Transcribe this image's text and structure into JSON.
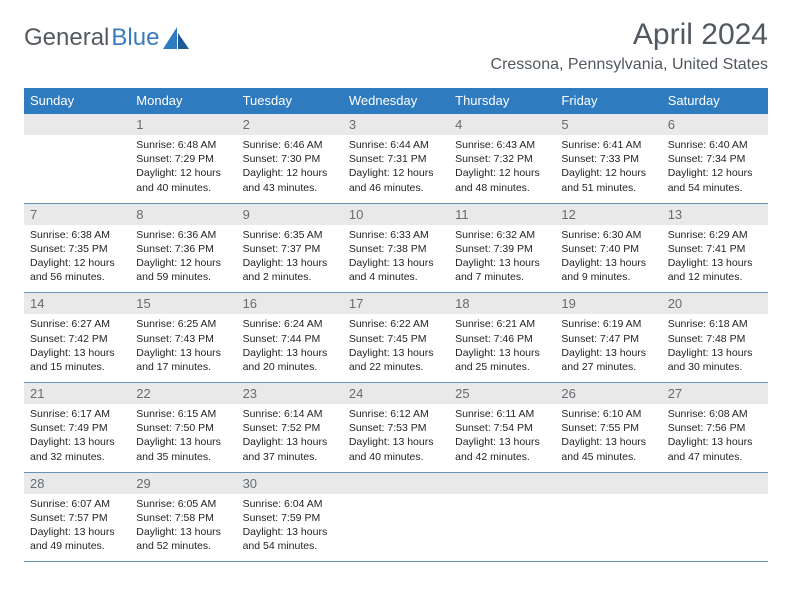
{
  "brand": {
    "part1": "General",
    "part2": "Blue"
  },
  "title": "April 2024",
  "location": "Cressona, Pennsylvania, United States",
  "colors": {
    "header_bg": "#2f7bbf",
    "header_text": "#ffffff",
    "daynum_bg": "#e9e9e9",
    "daynum_text": "#666c72",
    "text": "#222426",
    "row_border": "#6b93b8",
    "title_text": "#51585f"
  },
  "weekdays": [
    "Sunday",
    "Monday",
    "Tuesday",
    "Wednesday",
    "Thursday",
    "Friday",
    "Saturday"
  ],
  "weeks": [
    [
      {
        "num": "",
        "lines": []
      },
      {
        "num": "1",
        "lines": [
          "Sunrise: 6:48 AM",
          "Sunset: 7:29 PM",
          "Daylight: 12 hours",
          "and 40 minutes."
        ]
      },
      {
        "num": "2",
        "lines": [
          "Sunrise: 6:46 AM",
          "Sunset: 7:30 PM",
          "Daylight: 12 hours",
          "and 43 minutes."
        ]
      },
      {
        "num": "3",
        "lines": [
          "Sunrise: 6:44 AM",
          "Sunset: 7:31 PM",
          "Daylight: 12 hours",
          "and 46 minutes."
        ]
      },
      {
        "num": "4",
        "lines": [
          "Sunrise: 6:43 AM",
          "Sunset: 7:32 PM",
          "Daylight: 12 hours",
          "and 48 minutes."
        ]
      },
      {
        "num": "5",
        "lines": [
          "Sunrise: 6:41 AM",
          "Sunset: 7:33 PM",
          "Daylight: 12 hours",
          "and 51 minutes."
        ]
      },
      {
        "num": "6",
        "lines": [
          "Sunrise: 6:40 AM",
          "Sunset: 7:34 PM",
          "Daylight: 12 hours",
          "and 54 minutes."
        ]
      }
    ],
    [
      {
        "num": "7",
        "lines": [
          "Sunrise: 6:38 AM",
          "Sunset: 7:35 PM",
          "Daylight: 12 hours",
          "and 56 minutes."
        ]
      },
      {
        "num": "8",
        "lines": [
          "Sunrise: 6:36 AM",
          "Sunset: 7:36 PM",
          "Daylight: 12 hours",
          "and 59 minutes."
        ]
      },
      {
        "num": "9",
        "lines": [
          "Sunrise: 6:35 AM",
          "Sunset: 7:37 PM",
          "Daylight: 13 hours",
          "and 2 minutes."
        ]
      },
      {
        "num": "10",
        "lines": [
          "Sunrise: 6:33 AM",
          "Sunset: 7:38 PM",
          "Daylight: 13 hours",
          "and 4 minutes."
        ]
      },
      {
        "num": "11",
        "lines": [
          "Sunrise: 6:32 AM",
          "Sunset: 7:39 PM",
          "Daylight: 13 hours",
          "and 7 minutes."
        ]
      },
      {
        "num": "12",
        "lines": [
          "Sunrise: 6:30 AM",
          "Sunset: 7:40 PM",
          "Daylight: 13 hours",
          "and 9 minutes."
        ]
      },
      {
        "num": "13",
        "lines": [
          "Sunrise: 6:29 AM",
          "Sunset: 7:41 PM",
          "Daylight: 13 hours",
          "and 12 minutes."
        ]
      }
    ],
    [
      {
        "num": "14",
        "lines": [
          "Sunrise: 6:27 AM",
          "Sunset: 7:42 PM",
          "Daylight: 13 hours",
          "and 15 minutes."
        ]
      },
      {
        "num": "15",
        "lines": [
          "Sunrise: 6:25 AM",
          "Sunset: 7:43 PM",
          "Daylight: 13 hours",
          "and 17 minutes."
        ]
      },
      {
        "num": "16",
        "lines": [
          "Sunrise: 6:24 AM",
          "Sunset: 7:44 PM",
          "Daylight: 13 hours",
          "and 20 minutes."
        ]
      },
      {
        "num": "17",
        "lines": [
          "Sunrise: 6:22 AM",
          "Sunset: 7:45 PM",
          "Daylight: 13 hours",
          "and 22 minutes."
        ]
      },
      {
        "num": "18",
        "lines": [
          "Sunrise: 6:21 AM",
          "Sunset: 7:46 PM",
          "Daylight: 13 hours",
          "and 25 minutes."
        ]
      },
      {
        "num": "19",
        "lines": [
          "Sunrise: 6:19 AM",
          "Sunset: 7:47 PM",
          "Daylight: 13 hours",
          "and 27 minutes."
        ]
      },
      {
        "num": "20",
        "lines": [
          "Sunrise: 6:18 AM",
          "Sunset: 7:48 PM",
          "Daylight: 13 hours",
          "and 30 minutes."
        ]
      }
    ],
    [
      {
        "num": "21",
        "lines": [
          "Sunrise: 6:17 AM",
          "Sunset: 7:49 PM",
          "Daylight: 13 hours",
          "and 32 minutes."
        ]
      },
      {
        "num": "22",
        "lines": [
          "Sunrise: 6:15 AM",
          "Sunset: 7:50 PM",
          "Daylight: 13 hours",
          "and 35 minutes."
        ]
      },
      {
        "num": "23",
        "lines": [
          "Sunrise: 6:14 AM",
          "Sunset: 7:52 PM",
          "Daylight: 13 hours",
          "and 37 minutes."
        ]
      },
      {
        "num": "24",
        "lines": [
          "Sunrise: 6:12 AM",
          "Sunset: 7:53 PM",
          "Daylight: 13 hours",
          "and 40 minutes."
        ]
      },
      {
        "num": "25",
        "lines": [
          "Sunrise: 6:11 AM",
          "Sunset: 7:54 PM",
          "Daylight: 13 hours",
          "and 42 minutes."
        ]
      },
      {
        "num": "26",
        "lines": [
          "Sunrise: 6:10 AM",
          "Sunset: 7:55 PM",
          "Daylight: 13 hours",
          "and 45 minutes."
        ]
      },
      {
        "num": "27",
        "lines": [
          "Sunrise: 6:08 AM",
          "Sunset: 7:56 PM",
          "Daylight: 13 hours",
          "and 47 minutes."
        ]
      }
    ],
    [
      {
        "num": "28",
        "lines": [
          "Sunrise: 6:07 AM",
          "Sunset: 7:57 PM",
          "Daylight: 13 hours",
          "and 49 minutes."
        ]
      },
      {
        "num": "29",
        "lines": [
          "Sunrise: 6:05 AM",
          "Sunset: 7:58 PM",
          "Daylight: 13 hours",
          "and 52 minutes."
        ]
      },
      {
        "num": "30",
        "lines": [
          "Sunrise: 6:04 AM",
          "Sunset: 7:59 PM",
          "Daylight: 13 hours",
          "and 54 minutes."
        ]
      },
      {
        "num": "",
        "lines": []
      },
      {
        "num": "",
        "lines": []
      },
      {
        "num": "",
        "lines": []
      },
      {
        "num": "",
        "lines": []
      }
    ]
  ]
}
